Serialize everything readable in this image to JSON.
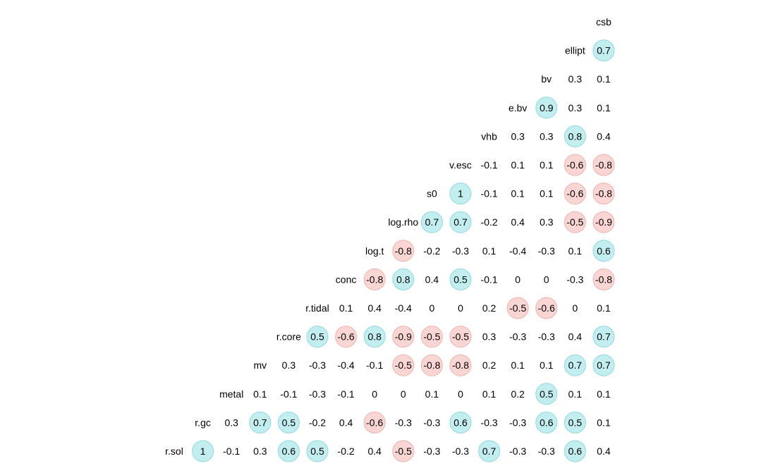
{
  "chart_data": {
    "type": "heatmap",
    "variables": [
      "r.sol",
      "r.gc",
      "metal",
      "mv",
      "r.core",
      "r.tidal",
      "conc",
      "log.t",
      "log.rho",
      "s0",
      "v.esc",
      "vhb",
      "e.bv",
      "bv",
      "ellipt",
      "csb"
    ],
    "threshold": 0.5,
    "colors": {
      "positive_fill": "#c3eef0",
      "positive_stroke": "#8fd9df",
      "negative_fill": "#f9d6d3",
      "negative_stroke": "#eeb2ad"
    },
    "correlations": [
      [
        1
      ],
      [
        -0.1,
        0.3
      ],
      [
        0.3,
        0.7,
        0.1
      ],
      [
        0.6,
        0.5,
        -0.1,
        0.3
      ],
      [
        0.5,
        -0.2,
        -0.3,
        -0.3,
        0.5
      ],
      [
        -0.2,
        0.4,
        -0.1,
        -0.4,
        -0.6,
        0.1
      ],
      [
        0.4,
        -0.6,
        0,
        -0.1,
        0.8,
        0.4,
        -0.8
      ],
      [
        -0.5,
        -0.3,
        0,
        -0.5,
        -0.9,
        -0.4,
        0.8,
        -0.8
      ],
      [
        -0.3,
        -0.3,
        0.1,
        -0.8,
        -0.5,
        0,
        0.4,
        -0.2,
        0.7
      ],
      [
        -0.3,
        0.6,
        0,
        -0.8,
        -0.5,
        0,
        0.5,
        -0.3,
        0.7,
        1
      ],
      [
        0.7,
        -0.3,
        0.1,
        0.2,
        0.3,
        0.2,
        -0.1,
        0.1,
        -0.2,
        -0.1,
        -0.1
      ],
      [
        -0.3,
        -0.3,
        0.2,
        0.1,
        -0.3,
        -0.5,
        0,
        -0.4,
        0.4,
        0.1,
        0.1,
        0.3
      ],
      [
        -0.3,
        0.6,
        0.5,
        0.1,
        -0.3,
        -0.6,
        0,
        -0.3,
        0.3,
        0.1,
        0.1,
        0.3,
        0.9
      ],
      [
        0.6,
        0.5,
        0.1,
        0.7,
        0.4,
        0,
        -0.3,
        0.1,
        -0.5,
        -0.6,
        -0.6,
        0.8,
        0.3,
        0.3
      ],
      [
        0.4,
        0.1,
        0.1,
        0.7,
        0.7,
        0.1,
        -0.8,
        0.6,
        -0.9,
        -0.8,
        -0.8,
        0.4,
        0.1,
        0.1,
        0.7
      ]
    ]
  }
}
